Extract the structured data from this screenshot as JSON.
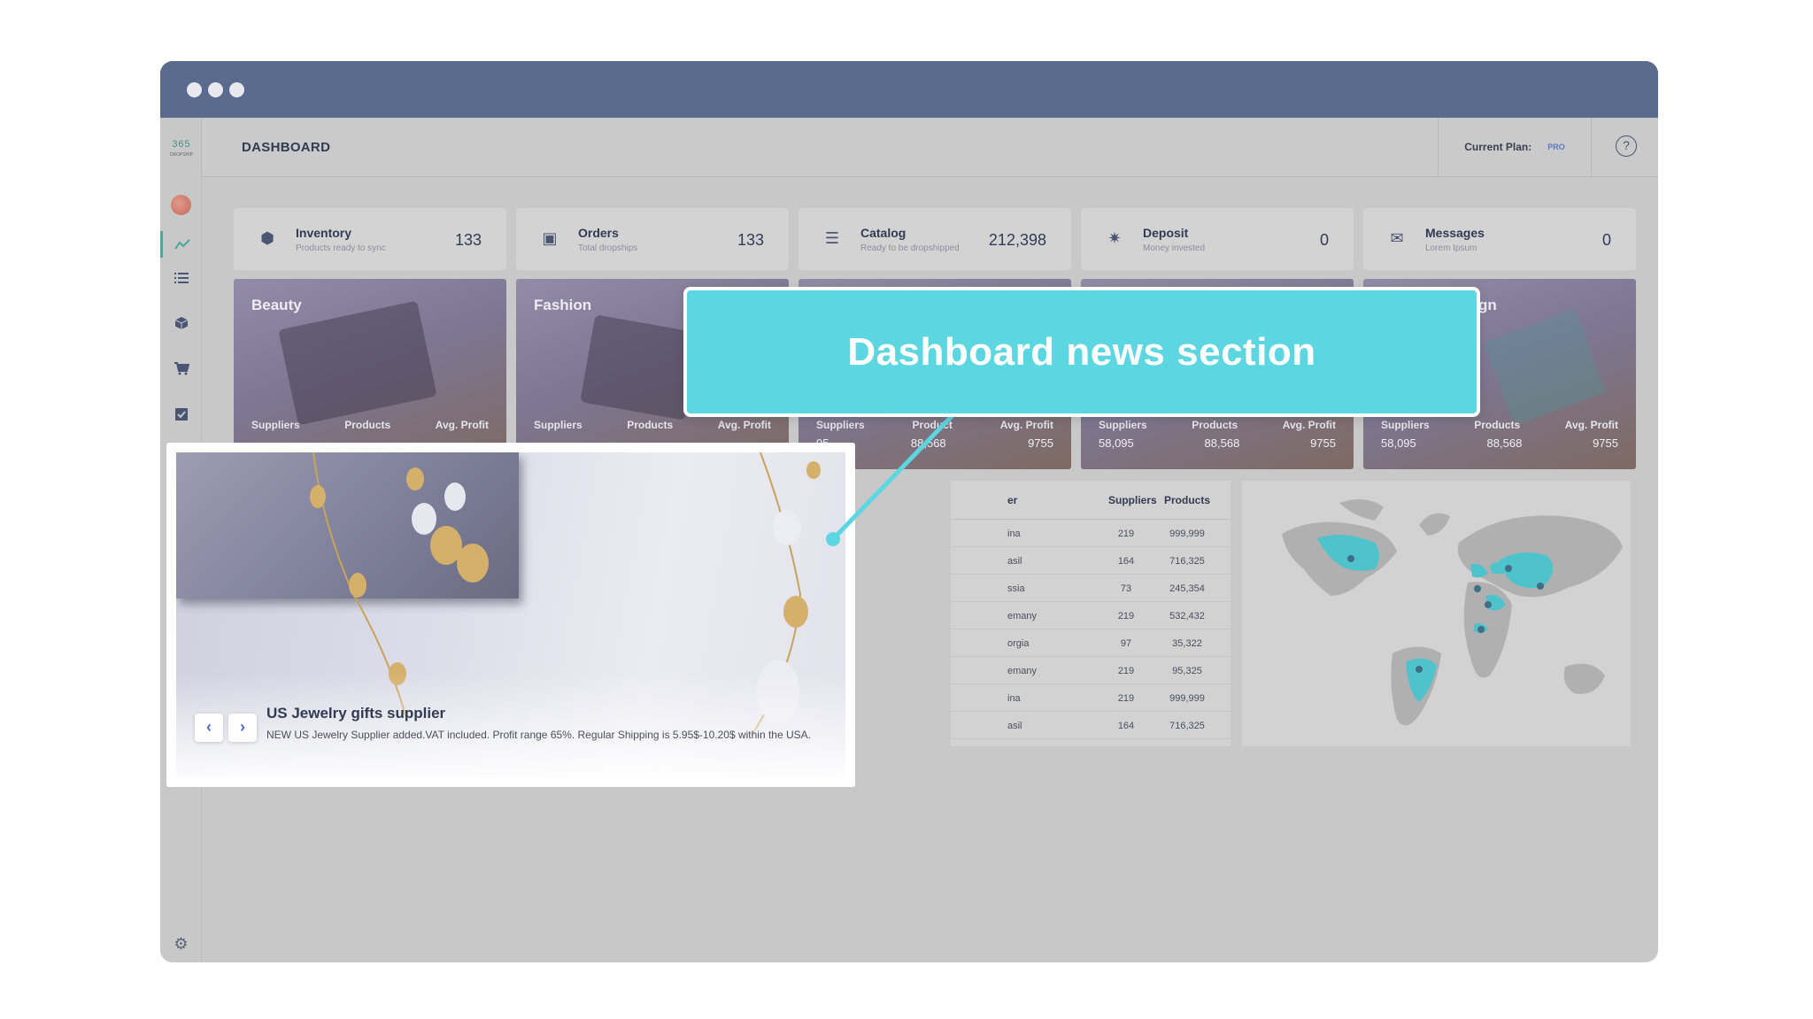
{
  "header": {
    "title": "DASHBOARD",
    "plan_label": "Current Plan:",
    "plan_value": "PRO",
    "help_icon": "help-icon"
  },
  "sidebar": {
    "logo_text": "365",
    "logo_sub": "DROPSHIP",
    "items": [
      "analytics-icon",
      "list-icon",
      "box-icon",
      "cart-icon",
      "clipboard-icon"
    ],
    "settings_icon": "gear-icon"
  },
  "stats": [
    {
      "name": "Inventory",
      "sub": "Products ready to sync",
      "value": "133"
    },
    {
      "name": "Orders",
      "sub": "Total dropships",
      "value": "133"
    },
    {
      "name": "Catalog",
      "sub": "Ready to be dropshipped",
      "value": "212,398"
    },
    {
      "name": "Deposit",
      "sub": "Money invested",
      "value": "0"
    },
    {
      "name": "Messages",
      "sub": "Lorem Ipsum",
      "value": "0"
    }
  ],
  "categories": [
    {
      "title": "Beauty",
      "suppliers_label": "Suppliers",
      "products_label": "Products",
      "profit_label": "Avg. Profit"
    },
    {
      "title": "Fashion",
      "suppliers_label": "Suppliers",
      "products_label": "Products",
      "profit_label": "Avg. Profit"
    },
    {
      "products_label": "Product",
      "profit_label": "Avg. Profit",
      "suppliers_value": "95",
      "products_value": "88,568",
      "profit_value": "9755",
      "suppliers_label": "Suppliers"
    },
    {
      "suppliers_label": "Suppliers",
      "products_label": "Products",
      "profit_label": "Avg. Profit",
      "suppliers_value": "58,095",
      "products_value": "88,568",
      "profit_value": "9755"
    },
    {
      "title": "gn",
      "suppliers_label": "Suppliers",
      "products_label": "Products",
      "profit_label": "Avg. Profit",
      "suppliers_value": "58,095",
      "products_value": "88,568",
      "profit_value": "9755"
    }
  ],
  "table": {
    "head_partial": "er",
    "col_suppliers": "Suppliers",
    "col_products": "Products",
    "rows": [
      {
        "country": "ina",
        "suppliers": "219",
        "products": "999,999"
      },
      {
        "country": "asil",
        "suppliers": "164",
        "products": "716,325"
      },
      {
        "country": "ssia",
        "suppliers": "73",
        "products": "245,354"
      },
      {
        "country": "emany",
        "suppliers": "219",
        "products": "532,432"
      },
      {
        "country": "orgia",
        "suppliers": "97",
        "products": "35,322"
      },
      {
        "country": "emany",
        "suppliers": "219",
        "products": "95,325"
      },
      {
        "country": "ina",
        "suppliers": "219",
        "products": "999,999"
      },
      {
        "country": "asil",
        "suppliers": "164",
        "products": "716,325"
      }
    ]
  },
  "news": {
    "title": "US Jewelry gifts supplier",
    "description": "NEW US Jewelry Supplier added.VAT included. Profit range 65%. Regular Shipping is 5.95$-10.20$ within the USA.",
    "prev_icon": "chevron-left-icon",
    "next_icon": "chevron-right-icon"
  },
  "callout": {
    "text": "Dashboard news section"
  },
  "colors": {
    "titlebar": "#5b6b8d",
    "accent": "#5cd6e0",
    "highlight": "#4aa89d"
  }
}
